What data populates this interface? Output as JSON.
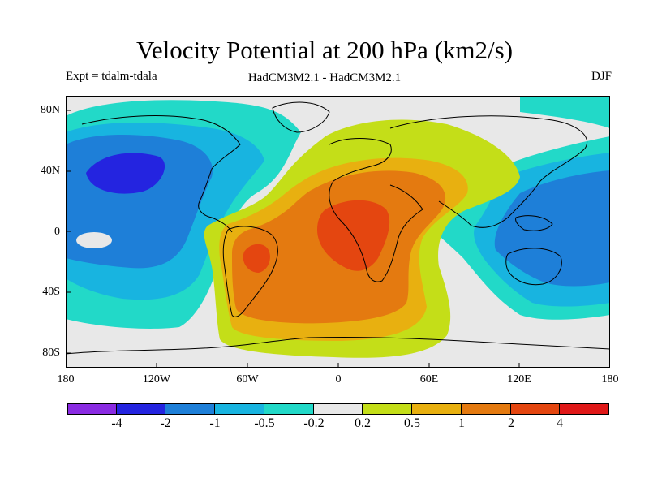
{
  "title": "Velocity Potential at 200 hPa (km2/s)",
  "subtitle_left": "Expt = tdalm-tdala",
  "subtitle_center": "HadCM3M2.1 - HadCM3M2.1",
  "subtitle_right": "DJF",
  "y_axis_labels": [
    "80N",
    "40N",
    "0",
    "40S",
    "80S"
  ],
  "x_axis_labels": [
    "180",
    "120W",
    "60W",
    "0",
    "60E",
    "120E",
    "180"
  ],
  "colorbar": {
    "colors": [
      "#8a2be2",
      "#2424e0",
      "#1e7fd8",
      "#18b4e0",
      "#22d9c8",
      "#e8e8e8",
      "#c4de18",
      "#e8b010",
      "#e47a10",
      "#e44610",
      "#e01818"
    ],
    "labels": [
      "-4",
      "-2",
      "-1",
      "-0.5",
      "-0.2",
      "0.2",
      "0.5",
      "1",
      "2",
      "4"
    ]
  },
  "map": {
    "lat_ticks": [
      80,
      40,
      0,
      -40,
      -80
    ],
    "lon_ticks": [
      -180,
      -120,
      -60,
      0,
      60,
      120,
      180
    ],
    "lat_range": [
      -90,
      90
    ],
    "lon_range": [
      -180,
      180
    ]
  }
}
